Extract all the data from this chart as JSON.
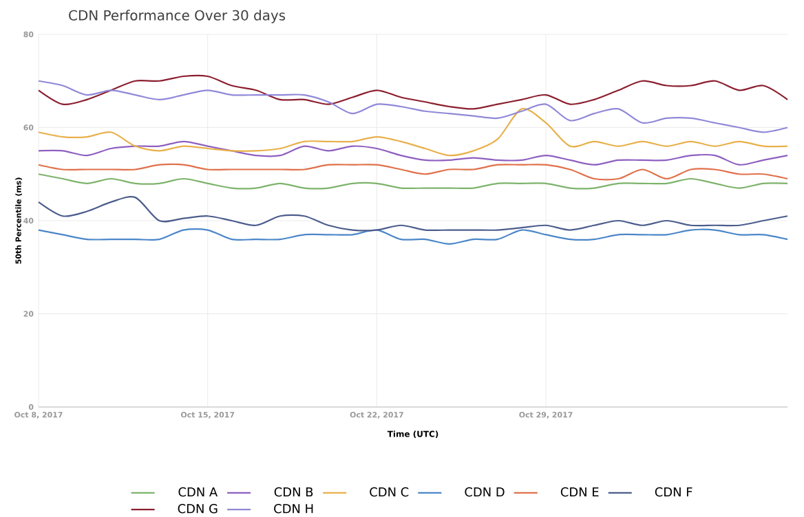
{
  "chart_data": {
    "type": "line",
    "title": "CDN Performance Over 30 days",
    "xlabel": "Time (UTC)",
    "ylabel": "50th Percentile (ms)",
    "x": [
      "2017-10-08",
      "2017-10-09",
      "2017-10-10",
      "2017-10-11",
      "2017-10-12",
      "2017-10-13",
      "2017-10-14",
      "2017-10-15",
      "2017-10-16",
      "2017-10-17",
      "2017-10-18",
      "2017-10-19",
      "2017-10-20",
      "2017-10-21",
      "2017-10-22",
      "2017-10-23",
      "2017-10-24",
      "2017-10-25",
      "2017-10-26",
      "2017-10-27",
      "2017-10-28",
      "2017-10-29",
      "2017-10-30",
      "2017-10-31",
      "2017-11-01",
      "2017-11-02",
      "2017-11-03",
      "2017-11-04",
      "2017-11-05",
      "2017-11-06",
      "2017-11-07",
      "2017-11-08"
    ],
    "series": [
      {
        "name": "CDN A",
        "color": "#7cb36b",
        "values": [
          50,
          49,
          48,
          49,
          48,
          48,
          49,
          48,
          47,
          47,
          48,
          47,
          47,
          48,
          48,
          47,
          47,
          47,
          47,
          48,
          48,
          48,
          47,
          47,
          48,
          48,
          48,
          49,
          48,
          47,
          48,
          48
        ]
      },
      {
        "name": "CDN B",
        "color": "#8e5fc0",
        "values": [
          55,
          55,
          54,
          55.5,
          56,
          56,
          57,
          56,
          55,
          54,
          54,
          56,
          55,
          56,
          55.5,
          54,
          53,
          53,
          53.5,
          53,
          53,
          54,
          53,
          52,
          53,
          53,
          53,
          54,
          54,
          52,
          53,
          54
        ]
      },
      {
        "name": "CDN C",
        "color": "#e8b04a",
        "values": [
          59,
          58,
          58,
          59,
          56,
          55,
          56,
          55.5,
          55,
          55,
          55.5,
          57,
          57,
          57,
          58,
          57,
          55.5,
          54,
          55,
          57.5,
          64,
          61,
          56,
          57,
          56,
          57,
          56,
          57,
          56,
          57,
          56,
          56
        ]
      },
      {
        "name": "CDN D",
        "color": "#4a86c8",
        "values": [
          38,
          37,
          36,
          36,
          36,
          36,
          38,
          38,
          36,
          36,
          36,
          37,
          37,
          37,
          38,
          36,
          36,
          35,
          36,
          36,
          38,
          37,
          36,
          36,
          37,
          37,
          37,
          38,
          38,
          37,
          37,
          36
        ]
      },
      {
        "name": "CDN E",
        "color": "#e0704a",
        "values": [
          52,
          51,
          51,
          51,
          51,
          52,
          52,
          51,
          51,
          51,
          51,
          51,
          52,
          52,
          52,
          51,
          50,
          51,
          51,
          52,
          52,
          52,
          51,
          49,
          49,
          51,
          49,
          51,
          51,
          50,
          50,
          49
        ]
      },
      {
        "name": "CDN F",
        "color": "#4b5d8c",
        "values": [
          44,
          41,
          42,
          44,
          45,
          40,
          40.5,
          41,
          40,
          39,
          41,
          41,
          39,
          38,
          38,
          39,
          38,
          38,
          38,
          38,
          38.5,
          39,
          38,
          39,
          40,
          39,
          40,
          39,
          39,
          39,
          40,
          41
        ]
      },
      {
        "name": "CDN G",
        "color": "#8b1e2e",
        "values": [
          68,
          65,
          66,
          68,
          70,
          70,
          71,
          71,
          69,
          68,
          66,
          66,
          65,
          66.5,
          68,
          66.5,
          65.5,
          64.5,
          64,
          65,
          66,
          67,
          65,
          66,
          68,
          70,
          69,
          69,
          70,
          68,
          69,
          66
        ]
      },
      {
        "name": "CDN H",
        "color": "#8f88d8",
        "values": [
          70,
          69,
          67,
          68,
          67,
          66,
          67,
          68,
          67,
          67,
          67,
          67,
          65.5,
          63,
          65,
          64.5,
          63.5,
          63,
          62.5,
          62,
          63.5,
          65,
          61.5,
          63,
          64,
          61,
          62,
          62,
          61,
          60,
          59,
          60
        ]
      }
    ],
    "xlim": [
      "2017-10-08",
      "2017-11-08"
    ],
    "xticks": [
      {
        "value": "2017-10-08",
        "label": "Oct 8, 2017"
      },
      {
        "value": "2017-10-15",
        "label": "Oct 15, 2017"
      },
      {
        "value": "2017-10-22",
        "label": "Oct 22, 2017"
      },
      {
        "value": "2017-10-29",
        "label": "Oct 29, 2017"
      }
    ],
    "ylim": [
      0,
      80
    ],
    "yticks": [
      0,
      20,
      40,
      60,
      80
    ],
    "grid": true,
    "legend": "bottom"
  }
}
